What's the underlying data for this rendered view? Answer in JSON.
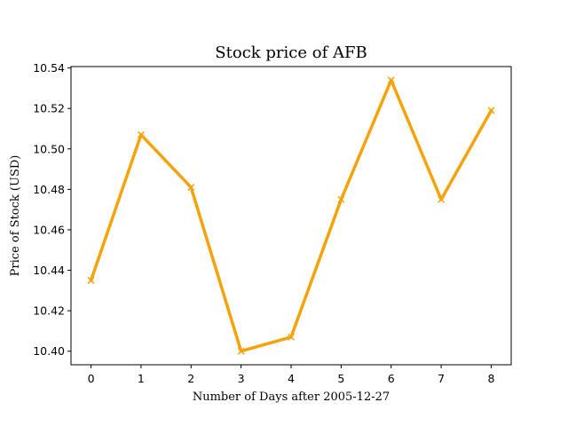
{
  "chart_data": {
    "type": "line",
    "title": "Stock price of AFB",
    "xlabel": "Number of Days after 2005-12-27",
    "ylabel": "Price of Stock (USD)",
    "x": [
      0,
      1,
      2,
      3,
      4,
      5,
      6,
      7,
      8
    ],
    "series": [
      {
        "values": [
          10.435,
          10.507,
          10.481,
          10.4,
          10.407,
          10.475,
          10.534,
          10.475,
          10.519
        ],
        "color": "#f5a30a",
        "marker": "x"
      }
    ],
    "xticks": [
      "0",
      "1",
      "2",
      "3",
      "4",
      "5",
      "6",
      "7",
      "8"
    ],
    "yticks": [
      "10.40",
      "10.42",
      "10.44",
      "10.46",
      "10.48",
      "10.50",
      "10.52",
      "10.54"
    ],
    "ytick_values": [
      10.4,
      10.42,
      10.44,
      10.46,
      10.48,
      10.5,
      10.52,
      10.54
    ],
    "xlim": [
      -0.4,
      8.4
    ],
    "ylim": [
      10.3933,
      10.5407
    ],
    "grid": false,
    "legend": "none"
  }
}
